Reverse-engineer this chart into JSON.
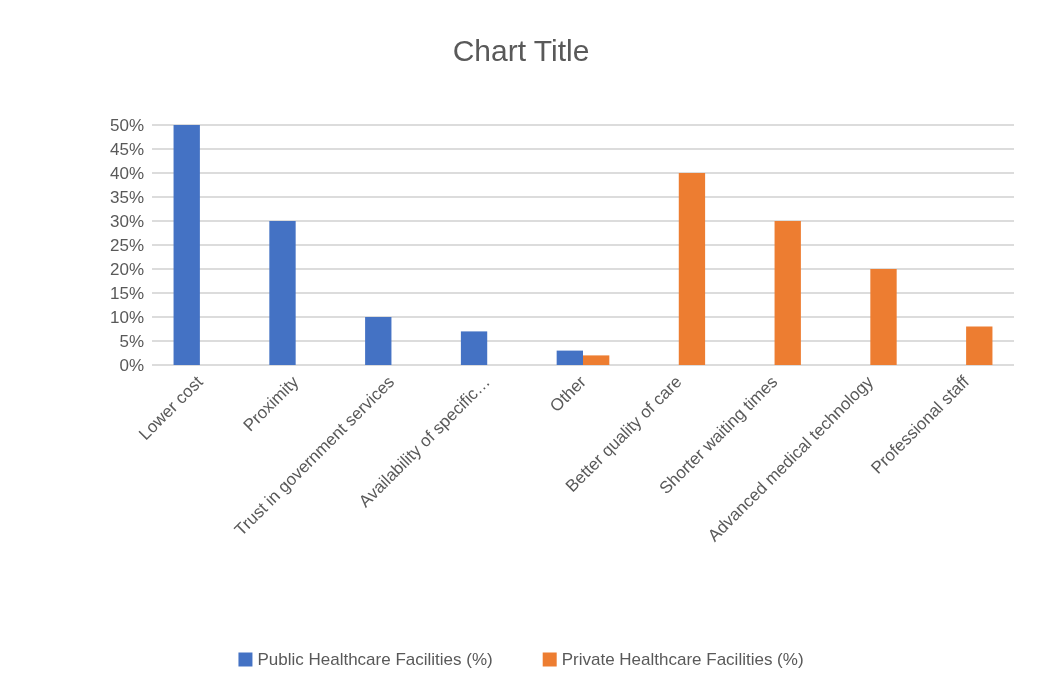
{
  "chart_data": {
    "type": "bar",
    "title": "Chart Title",
    "categories": [
      "Lower cost",
      "Proximity",
      "Trust in government services",
      "Availability of specific…",
      "Other",
      "Better quality of care",
      "Shorter waiting times",
      "Advanced medical technology",
      "Professional staff"
    ],
    "series": [
      {
        "name": "Public Healthcare Facilities (%)",
        "color": "#4472c4",
        "values": [
          50,
          30,
          10,
          7,
          3,
          0,
          0,
          0,
          0
        ]
      },
      {
        "name": "Private Healthcare Facilities (%)",
        "color": "#ed7d31",
        "values": [
          0,
          0,
          0,
          0,
          2,
          40,
          30,
          20,
          8
        ]
      }
    ],
    "ylim": [
      0,
      50
    ],
    "yticks": [
      {
        "value": 0,
        "label": "0%"
      },
      {
        "value": 5,
        "label": "5%"
      },
      {
        "value": 10,
        "label": "10%"
      },
      {
        "value": 15,
        "label": "15%"
      },
      {
        "value": 20,
        "label": "20%"
      },
      {
        "value": 25,
        "label": "25%"
      },
      {
        "value": 30,
        "label": "30%"
      },
      {
        "value": 35,
        "label": "35%"
      },
      {
        "value": 40,
        "label": "40%"
      },
      {
        "value": 45,
        "label": "45%"
      },
      {
        "value": 50,
        "label": "50%"
      }
    ],
    "grid": "y",
    "legend": "bottom"
  }
}
